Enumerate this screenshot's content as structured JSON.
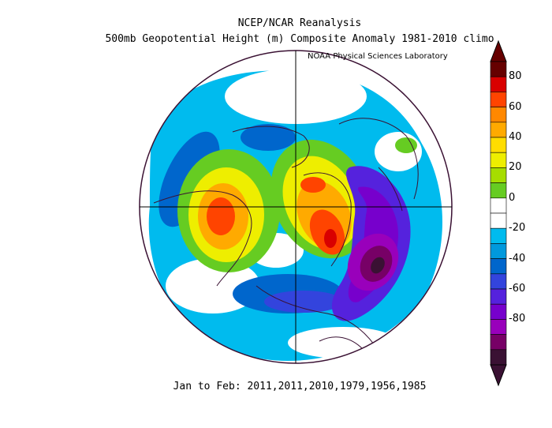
{
  "header": {
    "title": "NCEP/NCAR Reanalysis",
    "subtitle": "500mb Geopotential Height (m) Composite Anomaly 1981-2010 climo",
    "credit": "NOAA Physical Sciences Laboratory"
  },
  "footer": {
    "period": "Jan to Feb: 2011,2011,2010,1979,1956,1985"
  },
  "colorbar": {
    "labels": [
      "80",
      "60",
      "40",
      "20",
      "0",
      "-20",
      "-40",
      "-60",
      "-80"
    ],
    "colors": [
      "#660000",
      "#d90000",
      "#ff4400",
      "#ff8800",
      "#ffaa00",
      "#ffdd00",
      "#eeee00",
      "#a6dd00",
      "#66cc22",
      "#ffffff",
      "#ffffff",
      "#00bbee",
      "#0099dd",
      "#0066cc",
      "#3344dd",
      "#5522dd",
      "#7700cc",
      "#9900bb",
      "#770066",
      "#3a1133"
    ]
  }
}
